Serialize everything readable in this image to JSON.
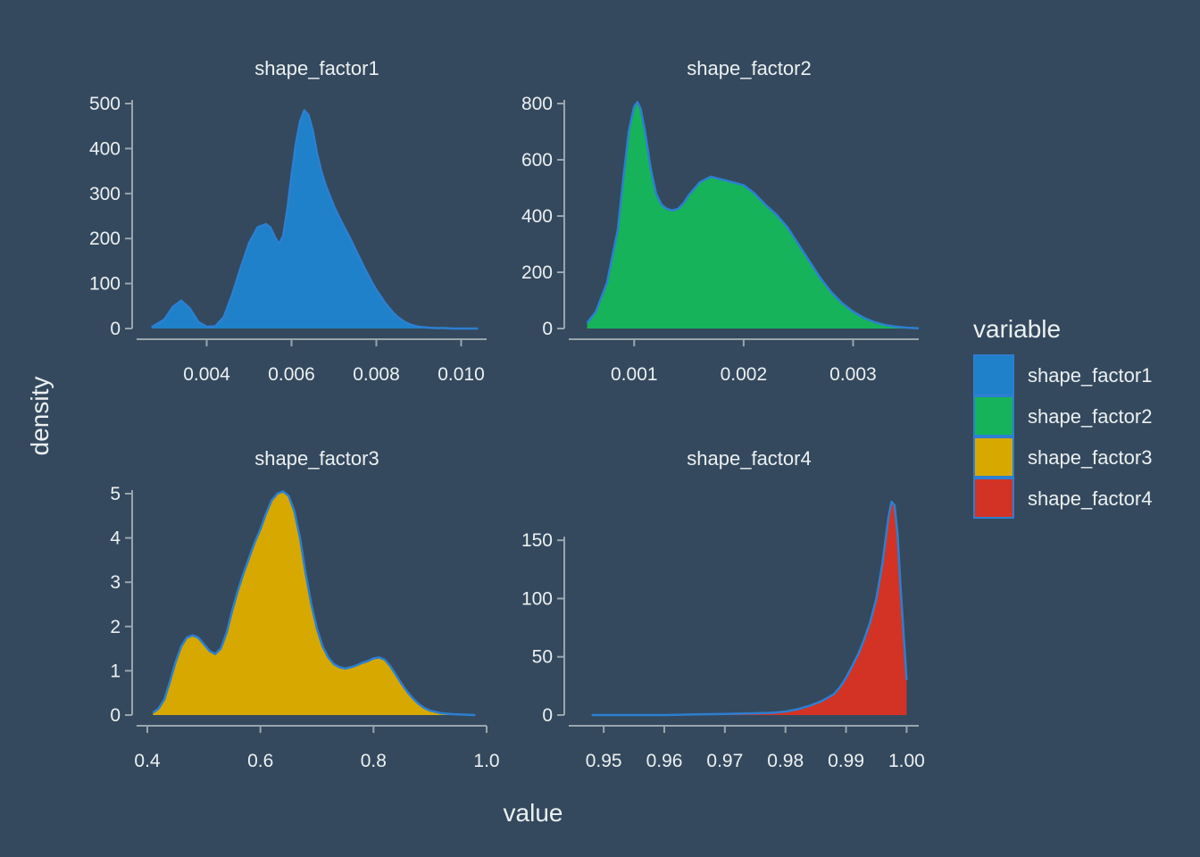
{
  "chart_data": {
    "type": "area",
    "chart_kind": "faceted density plot",
    "xlabel": "value",
    "ylabel": "density",
    "legend": {
      "title": "variable",
      "placement": "right",
      "entries": [
        {
          "label": "shape_factor1",
          "color": "#1e81c9"
        },
        {
          "label": "shape_factor2",
          "color": "#17b35a"
        },
        {
          "label": "shape_factor3",
          "color": "#d6a800"
        },
        {
          "label": "shape_factor4",
          "color": "#d33325"
        }
      ]
    },
    "outline_color": "#2c7fd1",
    "axis_color": "#9aa5ad",
    "grid": false,
    "panels": [
      {
        "title": "shape_factor1",
        "color": "#1e81c9",
        "xlim": [
          0.0026,
          0.0106
        ],
        "ylim": [
          0,
          500
        ],
        "xticks": [
          0.004,
          0.006,
          0.008,
          0.01
        ],
        "xtick_labels": [
          "0.004",
          "0.006",
          "0.008",
          "0.010"
        ],
        "yticks": [
          0,
          100,
          200,
          300,
          400,
          500
        ],
        "ytick_labels": [
          "0",
          "100",
          "200",
          "300",
          "400",
          "500"
        ],
        "x": [
          0.0027,
          0.003,
          0.0032,
          0.0034,
          0.0036,
          0.0038,
          0.004,
          0.0042,
          0.0044,
          0.0046,
          0.0048,
          0.005,
          0.0052,
          0.0054,
          0.0055,
          0.0056,
          0.0057,
          0.0058,
          0.0059,
          0.006,
          0.0061,
          0.0062,
          0.0063,
          0.0064,
          0.0065,
          0.0066,
          0.0067,
          0.0068,
          0.0069,
          0.007,
          0.0071,
          0.0072,
          0.0073,
          0.0074,
          0.0075,
          0.0076,
          0.0077,
          0.0078,
          0.0079,
          0.008,
          0.0081,
          0.0082,
          0.0083,
          0.0084,
          0.0085,
          0.0086,
          0.0087,
          0.0088,
          0.0089,
          0.009,
          0.0092,
          0.0094,
          0.0096,
          0.0098,
          0.01,
          0.0102,
          0.0104
        ],
        "y": [
          3,
          20,
          48,
          62,
          45,
          15,
          4,
          5,
          25,
          75,
          135,
          190,
          225,
          232,
          225,
          205,
          188,
          205,
          265,
          340,
          410,
          460,
          485,
          475,
          440,
          390,
          350,
          320,
          295,
          272,
          252,
          233,
          215,
          197,
          177,
          158,
          138,
          120,
          102,
          86,
          72,
          58,
          46,
          35,
          26,
          19,
          13,
          9,
          6,
          4,
          2,
          1,
          1,
          0,
          0,
          0,
          0
        ]
      },
      {
        "title": "shape_factor2",
        "color": "#17b35a",
        "xlim": [
          0.0005,
          0.0036
        ],
        "ylim": [
          0,
          800
        ],
        "xticks": [
          0.001,
          0.002,
          0.003
        ],
        "xtick_labels": [
          "0.001",
          "0.002",
          "0.003"
        ],
        "yticks": [
          0,
          200,
          400,
          600,
          800
        ],
        "ytick_labels": [
          "0",
          "200",
          "400",
          "600",
          "800"
        ],
        "x": [
          0.00057,
          0.00065,
          0.00075,
          0.00085,
          0.0009,
          0.00095,
          0.001,
          0.00103,
          0.00106,
          0.0011,
          0.00115,
          0.0012,
          0.00125,
          0.0013,
          0.00135,
          0.0014,
          0.00145,
          0.0015,
          0.0016,
          0.0017,
          0.0018,
          0.0019,
          0.002,
          0.0021,
          0.0022,
          0.0023,
          0.0024,
          0.0025,
          0.0026,
          0.0027,
          0.0028,
          0.0029,
          0.003,
          0.0031,
          0.0032,
          0.0033,
          0.0034,
          0.0035,
          0.0036
        ],
        "y": [
          20,
          60,
          160,
          350,
          530,
          700,
          790,
          805,
          780,
          700,
          570,
          480,
          440,
          425,
          420,
          425,
          445,
          475,
          520,
          540,
          530,
          520,
          510,
          480,
          440,
          405,
          360,
          300,
          240,
          180,
          130,
          90,
          60,
          38,
          22,
          12,
          6,
          3,
          1
        ]
      },
      {
        "title": "shape_factor3",
        "color": "#d6a800",
        "xlim": [
          0.4,
          1.0
        ],
        "ylim": [
          0,
          5
        ],
        "xticks": [
          0.4,
          0.6,
          0.8,
          1.0
        ],
        "xtick_labels": [
          "0.4",
          "0.6",
          "0.8",
          "1.0"
        ],
        "yticks": [
          0,
          1,
          2,
          3,
          4,
          5
        ],
        "ytick_labels": [
          "0",
          "1",
          "2",
          "3",
          "4",
          "5"
        ],
        "x": [
          0.41,
          0.42,
          0.43,
          0.44,
          0.45,
          0.46,
          0.47,
          0.48,
          0.49,
          0.5,
          0.51,
          0.52,
          0.53,
          0.54,
          0.55,
          0.56,
          0.57,
          0.58,
          0.59,
          0.6,
          0.61,
          0.62,
          0.63,
          0.64,
          0.65,
          0.66,
          0.67,
          0.68,
          0.69,
          0.7,
          0.71,
          0.72,
          0.73,
          0.74,
          0.75,
          0.76,
          0.77,
          0.78,
          0.79,
          0.8,
          0.81,
          0.82,
          0.83,
          0.84,
          0.85,
          0.86,
          0.87,
          0.88,
          0.89,
          0.9,
          0.92,
          0.94,
          0.96,
          0.98
        ],
        "y": [
          0.05,
          0.15,
          0.35,
          0.75,
          1.2,
          1.55,
          1.75,
          1.8,
          1.75,
          1.6,
          1.45,
          1.38,
          1.5,
          1.85,
          2.35,
          2.8,
          3.2,
          3.55,
          3.9,
          4.2,
          4.55,
          4.85,
          5.0,
          5.05,
          4.95,
          4.6,
          4.0,
          3.2,
          2.5,
          1.95,
          1.55,
          1.3,
          1.15,
          1.08,
          1.05,
          1.08,
          1.12,
          1.18,
          1.22,
          1.28,
          1.3,
          1.25,
          1.1,
          0.9,
          0.7,
          0.52,
          0.37,
          0.25,
          0.16,
          0.1,
          0.04,
          0.02,
          0.01,
          0.0
        ]
      },
      {
        "title": "shape_factor4",
        "color": "#d33325",
        "xlim": [
          0.946,
          1.002
        ],
        "ylim": [
          0,
          190
        ],
        "xticks": [
          0.95,
          0.96,
          0.97,
          0.98,
          0.99,
          1.0
        ],
        "xtick_labels": [
          "0.95",
          "0.96",
          "0.97",
          "0.98",
          "0.99",
          "1.00"
        ],
        "yticks": [
          0,
          50,
          100,
          150
        ],
        "ytick_labels": [
          "0",
          "50",
          "100",
          "150"
        ],
        "x": [
          0.948,
          0.955,
          0.96,
          0.965,
          0.97,
          0.975,
          0.978,
          0.98,
          0.982,
          0.984,
          0.986,
          0.988,
          0.989,
          0.99,
          0.991,
          0.992,
          0.993,
          0.994,
          0.995,
          0.9955,
          0.996,
          0.9965,
          0.997,
          0.9975,
          0.998,
          0.9985,
          0.999,
          0.9995,
          1.0
        ],
        "y": [
          0,
          0,
          0,
          0.5,
          1,
          1.5,
          2,
          3,
          5,
          8,
          12,
          18,
          24,
          32,
          42,
          52,
          65,
          80,
          100,
          115,
          130,
          150,
          170,
          183,
          180,
          155,
          110,
          70,
          30
        ]
      }
    ]
  }
}
